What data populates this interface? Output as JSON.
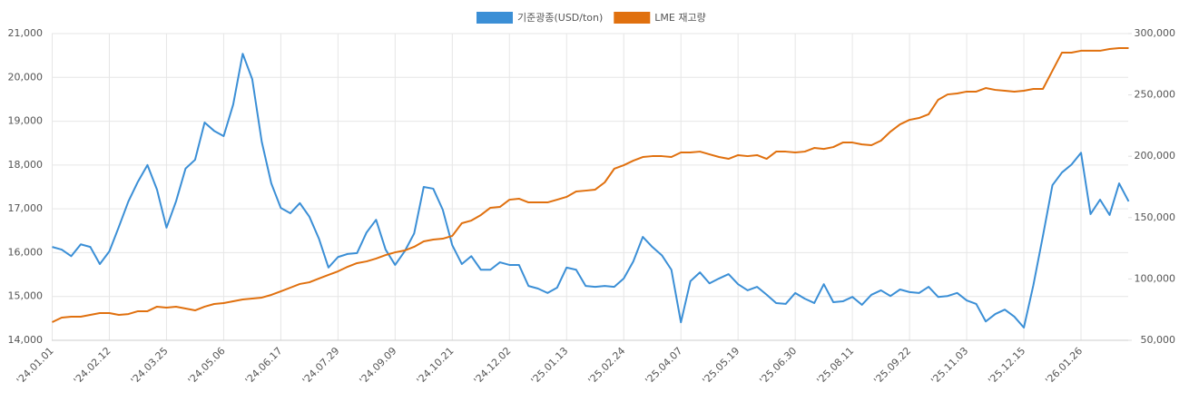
{
  "chart_data": {
    "type": "line",
    "categories": [
      "'24.01.01",
      null,
      null,
      null,
      null,
      null,
      "'24.02.12",
      null,
      null,
      null,
      null,
      null,
      "'24.03.25",
      null,
      null,
      null,
      null,
      null,
      "'24.05.06",
      null,
      null,
      null,
      null,
      null,
      "'24.06.17",
      null,
      null,
      null,
      null,
      null,
      "'24.07.29",
      null,
      null,
      null,
      null,
      null,
      "'24.09.09",
      null,
      null,
      null,
      null,
      null,
      "'24.10.21",
      null,
      null,
      null,
      null,
      null,
      "'24.12.02",
      null,
      null,
      null,
      null,
      null,
      "'25.01.13",
      null,
      null,
      null,
      null,
      null,
      "'25.02.24",
      null,
      null,
      null,
      null,
      null,
      "'25.04.07",
      null,
      null,
      null,
      null,
      null,
      "'25.05.19",
      null,
      null,
      null,
      null,
      null,
      "'25.06.30",
      null,
      null,
      null,
      null,
      null,
      "'25.08.11",
      null,
      null,
      null,
      null,
      null,
      "'25.09.22",
      null,
      null,
      null,
      null,
      null,
      "'25.11.03",
      null,
      null,
      null,
      null,
      null,
      "'25.12.15",
      null,
      null,
      null,
      null,
      null,
      "'26.01.26",
      null,
      null,
      null,
      null,
      null
    ],
    "series": [
      {
        "name": "기준광종(USD/ton)",
        "color": "#3b8fd6",
        "axis": "y",
        "values": [
          16130,
          16070,
          15920,
          16190,
          16130,
          15740,
          16030,
          16590,
          17170,
          17620,
          18000,
          17440,
          16570,
          17170,
          17920,
          18120,
          18970,
          18780,
          18660,
          19380,
          20540,
          19960,
          18530,
          17580,
          17020,
          16900,
          17130,
          16820,
          16320,
          15660,
          15900,
          15970,
          15990,
          16460,
          16750,
          16070,
          15720,
          16030,
          16440,
          17500,
          17460,
          16980,
          16170,
          15740,
          15920,
          15610,
          15610,
          15780,
          15720,
          15720,
          15240,
          15180,
          15080,
          15200,
          15660,
          15610,
          15240,
          15220,
          15240,
          15220,
          15410,
          15800,
          16360,
          16130,
          15940,
          15610,
          14410,
          15350,
          15550,
          15300,
          15410,
          15510,
          15280,
          15140,
          15220,
          15040,
          14850,
          14830,
          15080,
          14950,
          14850,
          15280,
          14870,
          14890,
          14990,
          14810,
          15040,
          15140,
          15010,
          15160,
          15100,
          15080,
          15220,
          14990,
          15010,
          15080,
          14910,
          14830,
          14430,
          14600,
          14700,
          14540,
          14290,
          15260,
          16380,
          17540,
          17830,
          18010,
          18280,
          16880,
          17210,
          16860,
          17580,
          17170
        ]
      },
      {
        "name": "LME 재고량",
        "color": "#e0700e",
        "axis": "y2",
        "values": [
          64800,
          68500,
          69200,
          69200,
          70700,
          72200,
          72200,
          70700,
          71400,
          73700,
          73700,
          77400,
          76600,
          77400,
          75900,
          74400,
          77400,
          79600,
          80300,
          81800,
          83300,
          84000,
          84800,
          87000,
          89900,
          92900,
          95900,
          97300,
          100300,
          103300,
          106200,
          109900,
          112900,
          114300,
          116600,
          119500,
          121700,
          123200,
          126200,
          130600,
          132100,
          132800,
          135100,
          145400,
          147600,
          152100,
          158000,
          158700,
          164600,
          165400,
          162400,
          162400,
          162400,
          164600,
          166900,
          171300,
          172000,
          172800,
          178700,
          189800,
          192700,
          196400,
          199400,
          200100,
          200100,
          199400,
          203100,
          203100,
          203800,
          201600,
          199400,
          197900,
          200900,
          200100,
          200900,
          197900,
          203800,
          203800,
          203100,
          203800,
          206800,
          206000,
          207500,
          211200,
          211200,
          209700,
          209000,
          212700,
          220100,
          226000,
          229700,
          231200,
          234200,
          246000,
          250400,
          251200,
          252700,
          252700,
          255600,
          254100,
          253400,
          252700,
          253400,
          254900,
          254900,
          269700,
          284500,
          284500,
          286000,
          286000,
          286000,
          287400,
          288200,
          288200
        ]
      }
    ],
    "ylim": [
      14000,
      21000
    ],
    "yticks": [
      {
        "value": 14000,
        "label": "14,000"
      },
      {
        "value": 15000,
        "label": "15,000"
      },
      {
        "value": 16000,
        "label": "16,000"
      },
      {
        "value": 17000,
        "label": "17,000"
      },
      {
        "value": 18000,
        "label": "18,000"
      },
      {
        "value": 19000,
        "label": "19,000"
      },
      {
        "value": 20000,
        "label": "20,000"
      },
      {
        "value": 21000,
        "label": "21,000"
      }
    ],
    "y2lim": [
      50000,
      300000
    ],
    "y2ticks": [
      {
        "value": 50000,
        "label": "50,000"
      },
      {
        "value": 100000,
        "label": "100,000"
      },
      {
        "value": 150000,
        "label": "150,000"
      },
      {
        "value": 200000,
        "label": "200,000"
      },
      {
        "value": 250000,
        "label": "250,000"
      },
      {
        "value": 300000,
        "label": "300,000"
      }
    ],
    "grid": true,
    "legend": "top"
  }
}
